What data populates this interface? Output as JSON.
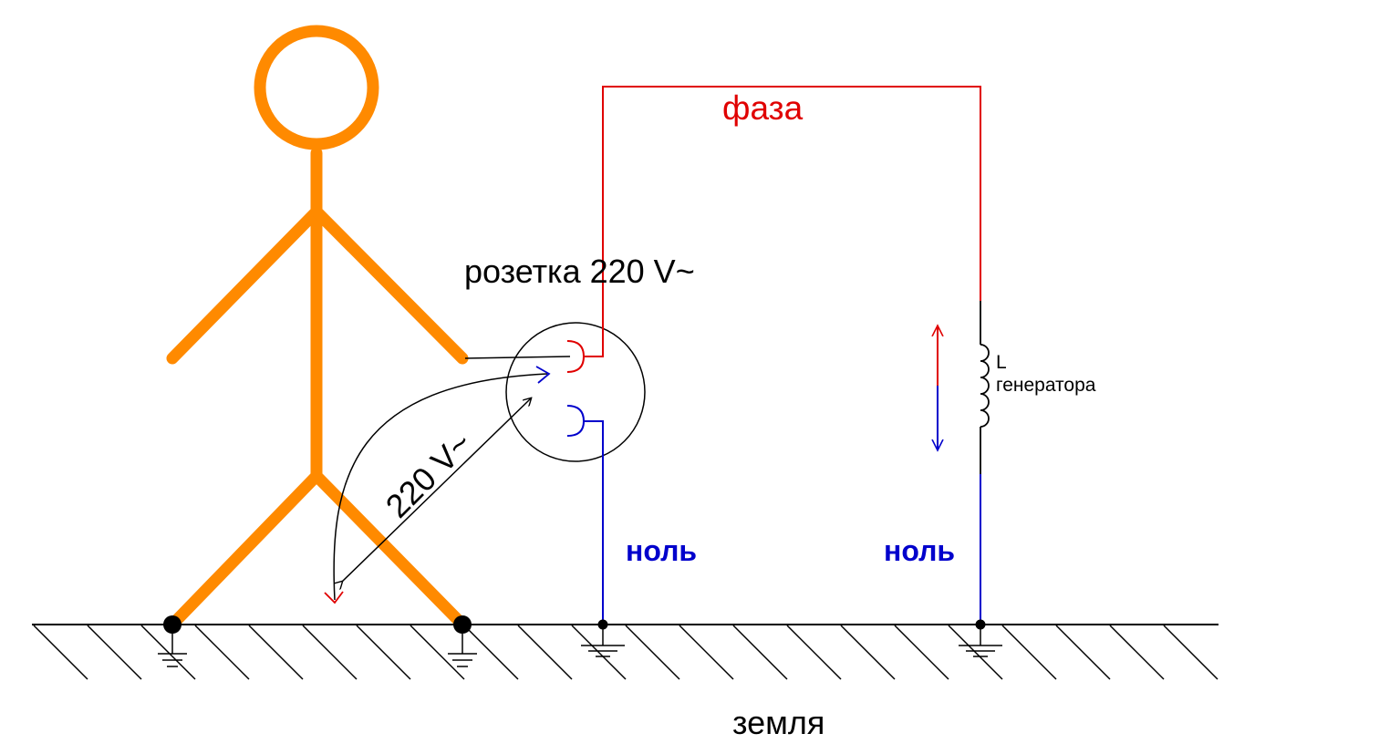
{
  "labels": {
    "phase": "фаза",
    "socket": "розетка 220 V~",
    "voltage": "220 V~",
    "neutral_left": "ноль",
    "neutral_right": "ноль",
    "inductor_symbol": "L",
    "inductor_name": "генератора",
    "ground": "земля"
  },
  "colors": {
    "person": "#ff8a00",
    "phase": "#e00000",
    "neutral": "#0000cc",
    "line": "#000000",
    "background": "#ffffff"
  }
}
